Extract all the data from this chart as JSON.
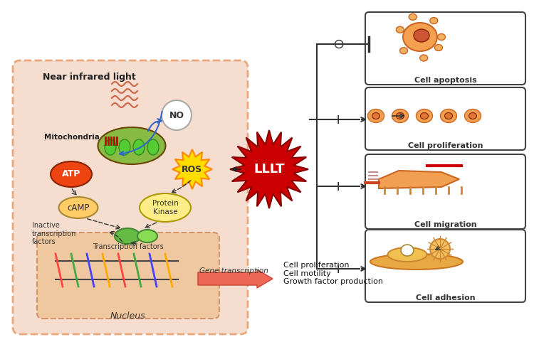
{
  "bg_color": "#ffffff",
  "cell_bg": "#f5ddd0",
  "cell_border": "#e8a87c",
  "nucleus_bg": "#f0c8a0",
  "nucleus_border": "#d4956a",
  "near_infrared_text": "Near infrared light",
  "mitochondria_text": "Mitochondria",
  "no_text": "NO",
  "atp_text": "ATP",
  "ros_text": "ROS",
  "camp_text": "cAMP",
  "pk_text": "Protein\nKinase",
  "inactive_text": "Inactive\ntranscription\nfactors",
  "tf_text": "Transcription factors",
  "nucleus_text": "Nucleus",
  "gene_text": "Gene transcription",
  "lllt_text": "LLLT",
  "cell_prolif_text": "Cell proliferation\nCell motility\nGrowth factor production",
  "apoptosis_label": "Cell apoptosis",
  "proliferation_label": "Cell proliferation",
  "migration_label": "Cell migration",
  "adhesion_label": "Cell adhesion",
  "inhibit_symbol": "⊖",
  "plus_symbol": "+",
  "lllt_color": "#cc0000",
  "camp_color": "#ffcc66",
  "pk_color": "#ffee88",
  "blue_arrow": "#3366cc"
}
